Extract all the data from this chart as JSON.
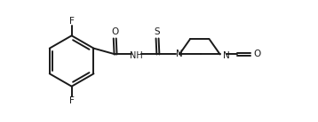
{
  "bg_color": "#ffffff",
  "line_color": "#1a1a1a",
  "line_width": 1.4,
  "font_size": 7.0,
  "fig_width": 3.58,
  "fig_height": 1.38,
  "dpi": 100,
  "xlim": [
    -0.2,
    10.5
  ],
  "ylim": [
    -2.5,
    2.5
  ]
}
